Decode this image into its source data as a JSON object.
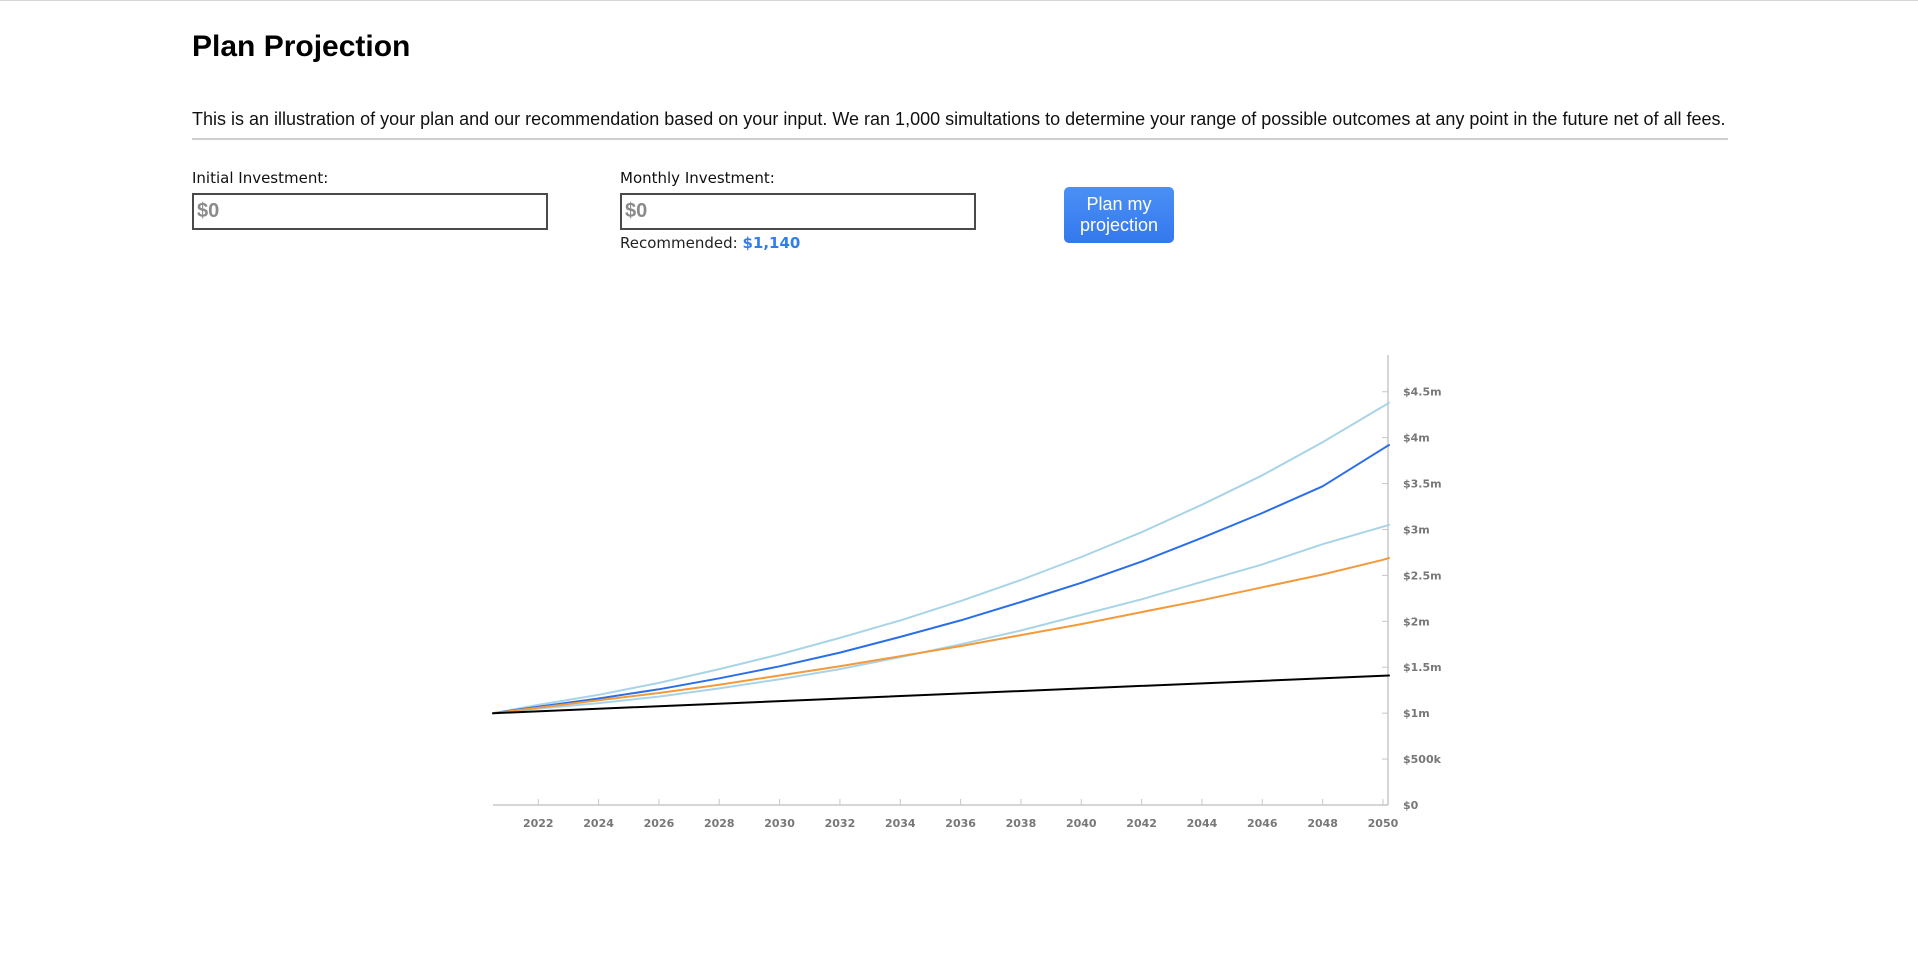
{
  "page": {
    "title": "Plan Projection",
    "description": "This is an illustration of your plan and our recommendation based on your input. We ran 1,000 simultations to determine your range of possible outcomes at any point in the future net of all fees."
  },
  "form": {
    "initial_label": "Initial Investment:",
    "initial_placeholder": "$0",
    "monthly_label": "Monthly Investment:",
    "monthly_placeholder": "$0",
    "recommended_label": "Recommended:",
    "recommended_value": "$1,140",
    "submit_label": "Plan my projection"
  },
  "colors": {
    "accent": "#3478ee",
    "recommended_text": "#2f7fe8",
    "band": "#a8d4e8",
    "median": "#2b6fe6",
    "plan": "#f39a3a",
    "baseline": "#000000"
  },
  "chart_data": {
    "type": "line",
    "title": "",
    "xlabel": "",
    "ylabel": "",
    "xlim": [
      2020.5,
      2050.2
    ],
    "ylim": [
      0,
      4900000
    ],
    "x_ticks": [
      "2022",
      "2024",
      "2026",
      "2028",
      "2030",
      "2032",
      "2034",
      "2036",
      "2038",
      "2040",
      "2042",
      "2044",
      "2046",
      "2048",
      "2050"
    ],
    "y_ticks": [
      "$0",
      "$500k",
      "$1m",
      "$1.5m",
      "$2m",
      "$2.5m",
      "$3m",
      "$3.5m",
      "$4m",
      "$4.5m"
    ],
    "y_tick_values": [
      0,
      500000,
      1000000,
      1500000,
      2000000,
      2500000,
      3000000,
      3500000,
      4000000,
      4500000
    ],
    "grid": false,
    "legend": "none",
    "series": [
      {
        "role": "upper-band",
        "color": "#a8d4e8",
        "x": [
          2020.5,
          2022,
          2024,
          2026,
          2028,
          2030,
          2032,
          2034,
          2036,
          2038,
          2040,
          2042,
          2044,
          2046,
          2048,
          2050,
          2050.2
        ],
        "y": [
          1000000,
          1090000,
          1200000,
          1330000,
          1480000,
          1640000,
          1820000,
          2010000,
          2220000,
          2450000,
          2700000,
          2970000,
          3270000,
          3590000,
          3950000,
          4340000,
          4380000
        ]
      },
      {
        "role": "median",
        "color": "#2b6fe6",
        "x": [
          2020.5,
          2022,
          2024,
          2026,
          2028,
          2030,
          2032,
          2034,
          2036,
          2038,
          2040,
          2042,
          2044,
          2046,
          2048,
          2050,
          2050.2
        ],
        "y": [
          1000000,
          1070000,
          1160000,
          1260000,
          1380000,
          1510000,
          1660000,
          1830000,
          2010000,
          2210000,
          2420000,
          2650000,
          2910000,
          3180000,
          3470000,
          3880000,
          3920000
        ]
      },
      {
        "role": "lower-band",
        "color": "#a8d4e8",
        "x": [
          2020.5,
          2022,
          2024,
          2026,
          2028,
          2030,
          2032,
          2034,
          2036,
          2038,
          2040,
          2042,
          2044,
          2046,
          2048,
          2050,
          2050.2
        ],
        "y": [
          1000000,
          1050000,
          1110000,
          1180000,
          1270000,
          1370000,
          1480000,
          1610000,
          1750000,
          1900000,
          2070000,
          2240000,
          2430000,
          2620000,
          2840000,
          3030000,
          3050000
        ]
      },
      {
        "role": "plan",
        "color": "#f39a3a",
        "x": [
          2020.5,
          2022,
          2024,
          2026,
          2028,
          2030,
          2032,
          2034,
          2036,
          2038,
          2040,
          2042,
          2044,
          2046,
          2048,
          2050,
          2050.2
        ],
        "y": [
          1000000,
          1060000,
          1140000,
          1220000,
          1310000,
          1410000,
          1510000,
          1620000,
          1730000,
          1850000,
          1970000,
          2100000,
          2230000,
          2370000,
          2510000,
          2670000,
          2690000
        ]
      },
      {
        "role": "baseline",
        "color": "#000000",
        "x": [
          2020.5,
          2050.2
        ],
        "y": [
          1000000,
          1410000
        ]
      }
    ]
  }
}
